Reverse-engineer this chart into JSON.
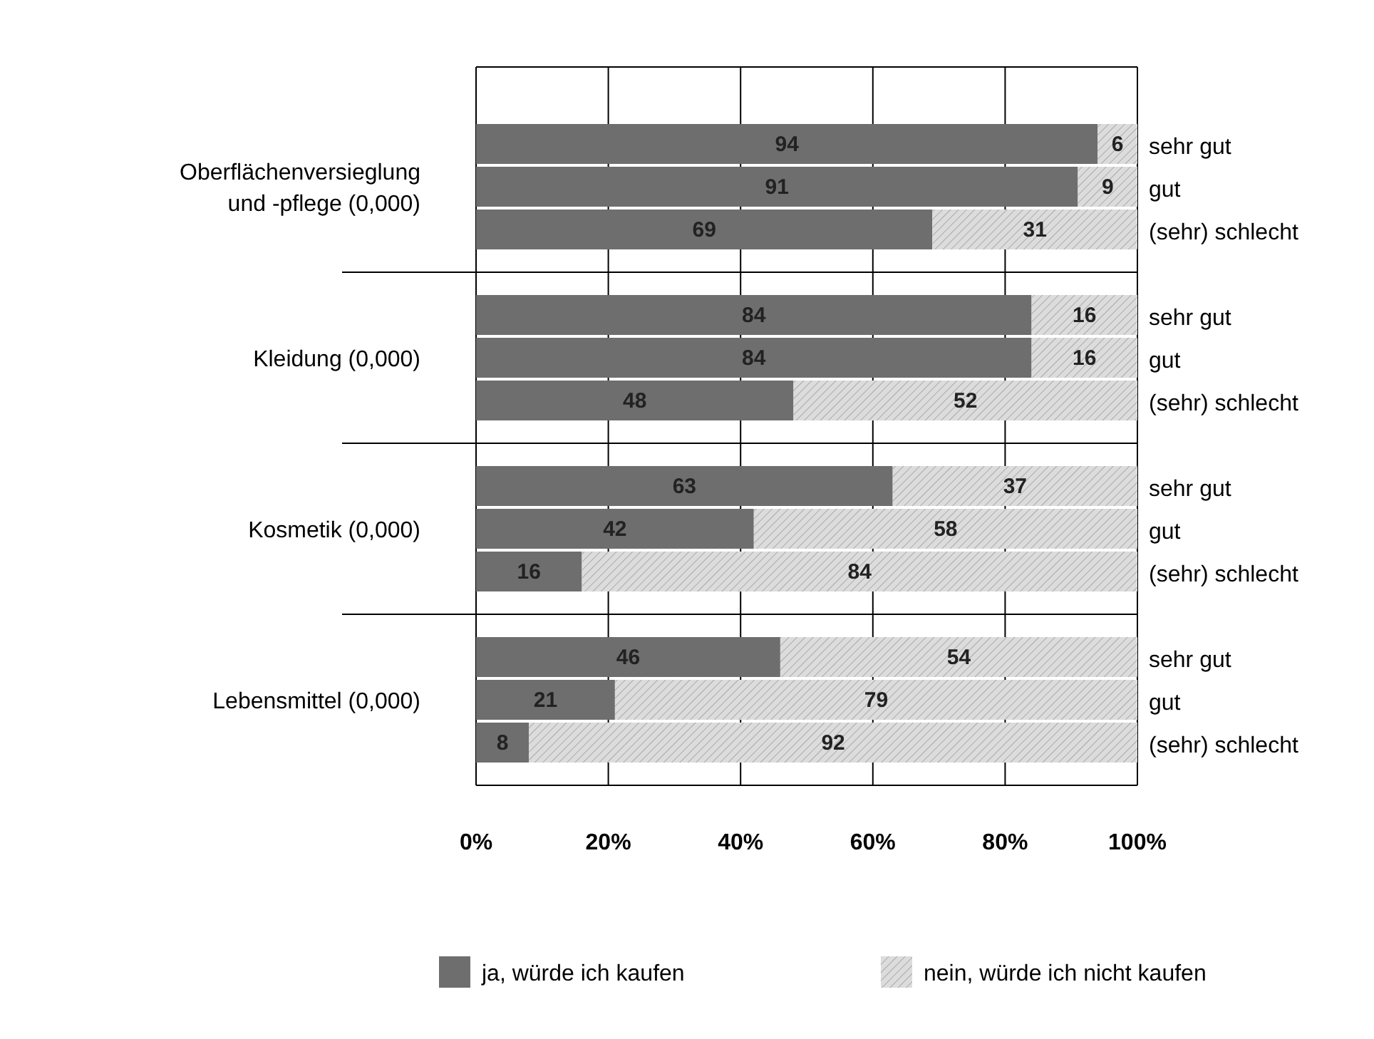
{
  "chart_data": {
    "type": "bar",
    "orientation": "horizontal",
    "stacked": true,
    "categories": [
      "sehr gut",
      "gut",
      "(sehr) schlecht",
      "sehr gut",
      "gut",
      "(sehr) schlecht",
      "sehr gut",
      "gut",
      "(sehr) schlecht",
      "sehr gut",
      "gut",
      "(sehr) schlecht"
    ],
    "series": [
      {
        "name": "ja, würde ich kaufen",
        "color": "#6e6e6e",
        "values": [
          94,
          91,
          69,
          84,
          84,
          48,
          63,
          42,
          16,
          46,
          21,
          8
        ]
      },
      {
        "name": "nein, würde ich nicht kaufen",
        "color": "#dcdcdc",
        "values": [
          6,
          9,
          31,
          16,
          16,
          52,
          37,
          58,
          84,
          54,
          79,
          92
        ]
      }
    ],
    "xlim": [
      0,
      100
    ],
    "xticks": [
      {
        "value": 0,
        "label": "0%"
      },
      {
        "value": 20,
        "label": "20%"
      },
      {
        "value": 40,
        "label": "40%"
      },
      {
        "value": 60,
        "label": "60%"
      },
      {
        "value": 80,
        "label": "80%"
      },
      {
        "value": 100,
        "label": "100%"
      }
    ],
    "annotations": [
      "Oberflächenversieglung und -pflege (0,000)",
      "Kleidung (0,000)",
      "Kosmetik (0,000)",
      "Lebensmittel (0,000)"
    ],
    "data_labels": true,
    "grid": "x",
    "legend": "bottom"
  }
}
